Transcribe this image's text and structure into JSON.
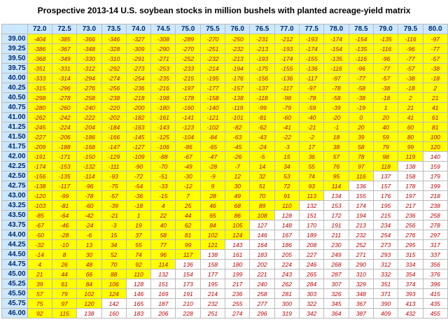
{
  "title": "Prospective 2013-14 U.S. soybean stocks  in million bushels with planted acreage-yield matrix",
  "highlight": {
    "color": "#ffff00",
    "max_value": 125
  },
  "table": {
    "columns": [
      "72.0",
      "72.5",
      "73.0",
      "73.5",
      "74.0",
      "74.5",
      "75.0",
      "75.5",
      "76.0",
      "76.5",
      "77.0",
      "77.5",
      "78.0",
      "78.5",
      "79.0",
      "79.5",
      "80.0"
    ],
    "rows": [
      {
        "label": "39.00",
        "values": [
          -404,
          -385,
          -366,
          -346,
          -327,
          -308,
          -289,
          -270,
          -250,
          -231,
          -212,
          -193,
          -174,
          -154,
          -135,
          -116,
          -97
        ]
      },
      {
        "label": "39.25",
        "values": [
          -386,
          -367,
          -348,
          -328,
          -309,
          -290,
          -270,
          -251,
          -232,
          -213,
          -193,
          -174,
          -154,
          -135,
          -116,
          -96,
          -77
        ]
      },
      {
        "label": "39.50",
        "values": [
          -368,
          -349,
          -330,
          -310,
          -291,
          -271,
          -252,
          -232,
          -213,
          -193,
          -174,
          -155,
          -135,
          -116,
          -96,
          -77,
          -57
        ]
      },
      {
        "label": "39.75",
        "values": [
          -351,
          -331,
          -312,
          -292,
          -273,
          -253,
          -233,
          -214,
          -194,
          -175,
          -155,
          -136,
          -116,
          -96,
          -77,
          -57,
          -38
        ]
      },
      {
        "label": "40.00",
        "values": [
          -333,
          -314,
          -294,
          -274,
          -254,
          -235,
          -215,
          -195,
          -176,
          -156,
          -136,
          -117,
          -97,
          -77,
          -57,
          -38,
          -18
        ]
      },
      {
        "label": "40.25",
        "values": [
          -315,
          -296,
          -276,
          -256,
          -236,
          -216,
          -197,
          -177,
          -157,
          -137,
          -117,
          -97,
          -78,
          -58,
          -38,
          -18,
          2
        ]
      },
      {
        "label": "40.50",
        "values": [
          -298,
          -278,
          -258,
          -238,
          -218,
          -198,
          -178,
          -158,
          -138,
          -118,
          -98,
          -78,
          -58,
          -38,
          -18,
          2,
          21
        ]
      },
      {
        "label": "40.75",
        "values": [
          -280,
          -260,
          -240,
          -220,
          -200,
          -180,
          -160,
          -140,
          -119,
          -99,
          -79,
          -59,
          -39,
          -19,
          1,
          21,
          41
        ]
      },
      {
        "label": "41.00",
        "values": [
          -262,
          -242,
          -222,
          -202,
          -182,
          -161,
          -141,
          -121,
          -101,
          -81,
          -60,
          -40,
          -20,
          0,
          20,
          41,
          61
        ]
      },
      {
        "label": "41.25",
        "values": [
          -245,
          -224,
          -204,
          -184,
          -163,
          -143,
          -123,
          -102,
          -82,
          -62,
          -41,
          -21,
          -1,
          20,
          40,
          60,
          81
        ]
      },
      {
        "label": "41.50",
        "values": [
          -227,
          -206,
          -186,
          -166,
          -145,
          -125,
          -104,
          -84,
          -63,
          -43,
          -22,
          -2,
          18,
          39,
          59,
          80,
          100
        ]
      },
      {
        "label": "41.75",
        "values": [
          -209,
          -188,
          -168,
          -147,
          -127,
          -106,
          -86,
          -65,
          -45,
          -24,
          -3,
          17,
          38,
          58,
          79,
          99,
          120
        ]
      },
      {
        "label": "42.00",
        "values": [
          -191,
          -171,
          -150,
          -129,
          -109,
          -88,
          -67,
          -47,
          -26,
          -5,
          15,
          36,
          57,
          78,
          98,
          119,
          140
        ]
      },
      {
        "label": "42.25",
        "values": [
          -174,
          -153,
          -132,
          -111,
          -90,
          -70,
          -49,
          -28,
          -7,
          14,
          34,
          55,
          76,
          97,
          118,
          138,
          159
        ]
      },
      {
        "label": "42.50",
        "values": [
          -156,
          -135,
          -114,
          -93,
          -72,
          -51,
          -30,
          -9,
          12,
          32,
          53,
          74,
          95,
          116,
          137,
          158,
          179
        ]
      },
      {
        "label": "42.75",
        "values": [
          -138,
          -117,
          -96,
          -75,
          -54,
          -33,
          -12,
          9,
          30,
          51,
          72,
          93,
          114,
          136,
          157,
          178,
          199
        ]
      },
      {
        "label": "43.00",
        "values": [
          -120,
          -99,
          -78,
          -57,
          -36,
          -15,
          7,
          28,
          49,
          70,
          91,
          113,
          134,
          155,
          176,
          197,
          218
        ]
      },
      {
        "label": "43.25",
        "values": [
          -103,
          -81,
          -60,
          -39,
          -18,
          4,
          25,
          46,
          68,
          89,
          110,
          132,
          153,
          174,
          195,
          217,
          238
        ]
      },
      {
        "label": "43.50",
        "values": [
          -85,
          -64,
          -42,
          -21,
          1,
          22,
          44,
          65,
          86,
          108,
          128,
          151,
          172,
          194,
          215,
          236,
          258
        ]
      },
      {
        "label": "43.75",
        "values": [
          -67,
          -46,
          -24,
          -3,
          19,
          40,
          62,
          84,
          105,
          127,
          148,
          170,
          191,
          213,
          234,
          256,
          278
        ]
      },
      {
        "label": "44.00",
        "values": [
          -50,
          -28,
          -6,
          15,
          37,
          58,
          81,
          102,
          124,
          146,
          167,
          189,
          211,
          232,
          254,
          276,
          297
        ]
      },
      {
        "label": "44.25",
        "values": [
          -32,
          -10,
          13,
          34,
          55,
          77,
          99,
          121,
          143,
          164,
          186,
          208,
          230,
          252,
          273,
          295,
          317
        ]
      },
      {
        "label": "44.50",
        "values": [
          -14,
          8,
          30,
          52,
          74,
          96,
          117,
          138,
          161,
          183,
          205,
          227,
          249,
          271,
          293,
          315,
          337
        ]
      },
      {
        "label": "44.75",
        "values": [
          4,
          26,
          48,
          70,
          92,
          114,
          136,
          158,
          180,
          202,
          224,
          246,
          268,
          290,
          312,
          334,
          356
        ]
      },
      {
        "label": "45.00",
        "values": [
          21,
          44,
          66,
          88,
          110,
          132,
          154,
          177,
          199,
          221,
          243,
          265,
          287,
          310,
          332,
          354,
          376
        ]
      },
      {
        "label": "45.25",
        "values": [
          39,
          61,
          84,
          106,
          128,
          151,
          173,
          195,
          217,
          240,
          262,
          284,
          307,
          329,
          351,
          374,
          396
        ]
      },
      {
        "label": "45.50",
        "values": [
          57,
          79,
          102,
          124,
          146,
          169,
          191,
          214,
          236,
          258,
          281,
          303,
          326,
          348,
          371,
          393,
          415
        ]
      },
      {
        "label": "45.75",
        "values": [
          75,
          97,
          120,
          142,
          165,
          187,
          210,
          232,
          255,
          277,
          300,
          322,
          345,
          367,
          390,
          413,
          435
        ]
      },
      {
        "label": "46.00",
        "values": [
          92,
          115,
          138,
          160,
          183,
          206,
          228,
          251,
          274,
          296,
          319,
          342,
          364,
          387,
          409,
          432,
          455
        ]
      }
    ]
  }
}
